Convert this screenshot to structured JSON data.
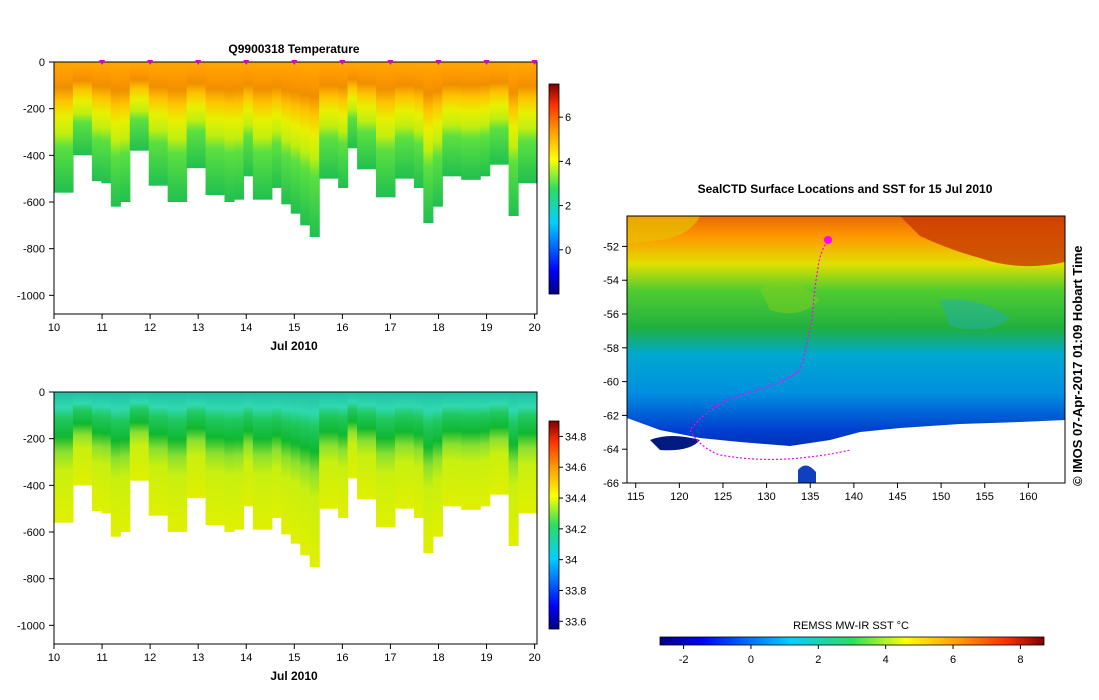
{
  "chart_data": [
    {
      "type": "heatmap",
      "title": "Q9900318  Temperature",
      "xlabel": "Jul 2010",
      "ylabel": "",
      "x_ticks": [
        "10",
        "11",
        "12",
        "13",
        "14",
        "15",
        "16",
        "17",
        "18",
        "19",
        "20"
      ],
      "y_ticks": [
        "0",
        "-200",
        "-400",
        "-600",
        "-800",
        "-1000"
      ],
      "xlim": [
        10,
        20.05
      ],
      "ylim": [
        -1080,
        0
      ],
      "colorbar": {
        "ticks": [
          "6",
          "4",
          "2",
          "0"
        ],
        "min": -2,
        "max": 7.5
      },
      "profile_markers_day": [
        11,
        12,
        13,
        14,
        15,
        16,
        17,
        18,
        19,
        20
      ],
      "profile_max_depth_m": [
        -560,
        -560,
        -400,
        -400,
        -510,
        -520,
        -620,
        -600,
        -380,
        -380,
        -530,
        -530,
        -600,
        -600,
        -455,
        -455,
        -570,
        -570,
        -600,
        -590,
        -490,
        -590,
        -590,
        -540,
        -610,
        -650,
        -700,
        -750,
        -500,
        -500,
        -540,
        -370,
        -460,
        -460,
        -580,
        -580,
        -500,
        -500,
        -540,
        -690,
        -620,
        -490,
        -490,
        -505,
        -505,
        -490,
        -440,
        -440,
        -660,
        -520,
        -520
      ]
    },
    {
      "type": "heatmap",
      "title": "",
      "xlabel": "Jul 2010",
      "ylabel": "",
      "x_ticks": [
        "10",
        "11",
        "12",
        "13",
        "14",
        "15",
        "16",
        "17",
        "18",
        "19",
        "20"
      ],
      "y_ticks": [
        "0",
        "-200",
        "-400",
        "-600",
        "-800",
        "-1000"
      ],
      "xlim": [
        10,
        20.05
      ],
      "ylim": [
        -1080,
        0
      ],
      "colorbar": {
        "ticks": [
          "34.8",
          "34.6",
          "34.4",
          "34.2",
          "34",
          "33.8",
          "33.6"
        ],
        "min": 33.55,
        "max": 34.9
      }
    },
    {
      "type": "heatmap",
      "title": "SealCTD Surface Locations and SST for 15 Jul 2010",
      "xlabel": "",
      "ylabel": "",
      "x_ticks": [
        "115",
        "120",
        "125",
        "130",
        "135",
        "140",
        "145",
        "150",
        "155",
        "160"
      ],
      "y_ticks": [
        "-52",
        "-54",
        "-56",
        "-58",
        "-60",
        "-62",
        "-64",
        "-66"
      ],
      "xlim": [
        114,
        164.2
      ],
      "ylim": [
        -66,
        -50.2
      ],
      "colorbar": {
        "label": "REMSS MW-IR SST °C",
        "ticks": [
          "-2",
          "0",
          "2",
          "4",
          "6",
          "8"
        ],
        "min": -2.7,
        "max": 8.7
      },
      "credit": "© IMOS 07-Apr-2017 01:09 Hobart Time"
    }
  ]
}
